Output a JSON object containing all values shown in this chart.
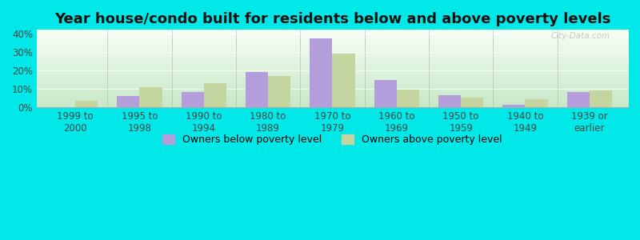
{
  "title": "Year house/condo built for residents below and above poverty levels",
  "categories": [
    "1999 to\n2000",
    "1995 to\n1998",
    "1990 to\n1994",
    "1980 to\n1989",
    "1970 to\n1979",
    "1960 to\n1969",
    "1950 to\n1959",
    "1940 to\n1949",
    "1939 or\nearlier"
  ],
  "below_poverty": [
    0.0,
    6.0,
    8.5,
    19.0,
    37.5,
    15.0,
    6.5,
    1.5,
    8.5
  ],
  "above_poverty": [
    3.5,
    11.0,
    13.0,
    17.0,
    29.0,
    9.5,
    5.5,
    4.5,
    9.0
  ],
  "below_color": "#b39ddb",
  "above_color": "#c5d5a0",
  "ylim": [
    0,
    42
  ],
  "yticks": [
    0,
    10,
    20,
    30,
    40
  ],
  "ytick_labels": [
    "0%",
    "10%",
    "20%",
    "30%",
    "40%"
  ],
  "bar_width": 0.35,
  "outer_bg": "#00e8e8",
  "legend_below_label": "Owners below poverty level",
  "legend_above_label": "Owners above poverty level",
  "title_fontsize": 13,
  "tick_fontsize": 8.5,
  "legend_fontsize": 9,
  "xlim_left": -0.6,
  "xlim_right": 8.6
}
